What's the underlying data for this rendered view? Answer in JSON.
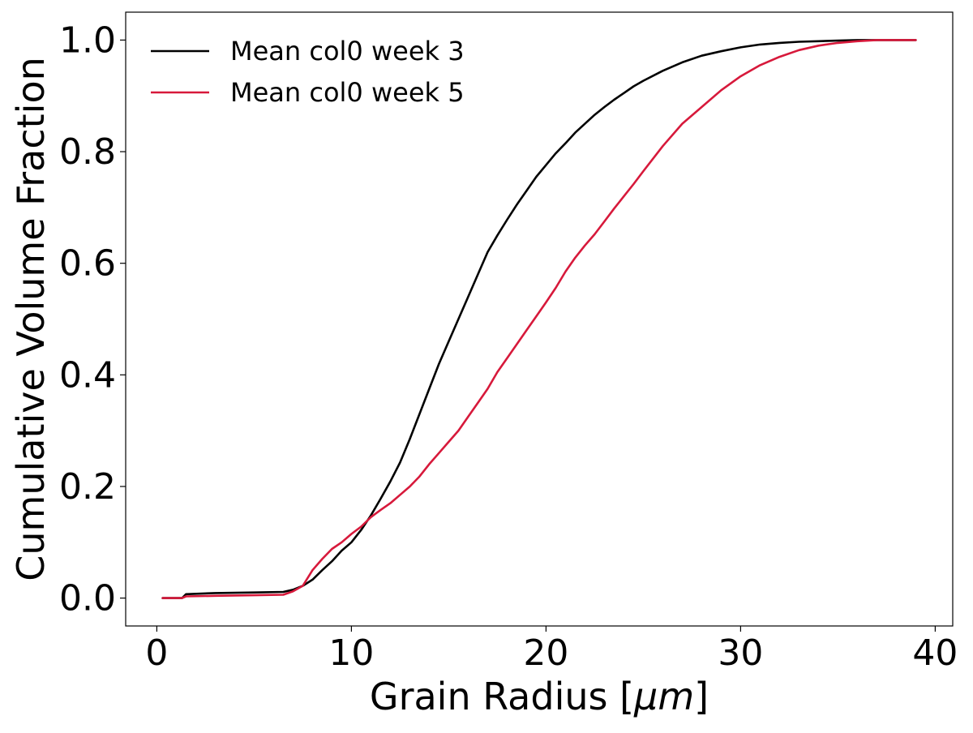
{
  "chart_data": {
    "type": "line",
    "xlabel_text": "Grain Radius [",
    "xlabel_math": "μm",
    "xlabel_close": "]",
    "ylabel": "Cumulative Volume Fraction",
    "xlim": [
      -1.6,
      40.9
    ],
    "ylim": [
      -0.05,
      1.05
    ],
    "xticks": [
      0,
      10,
      20,
      30,
      40
    ],
    "yticks": [
      0.0,
      0.2,
      0.4,
      0.6,
      0.8,
      1.0
    ],
    "xtick_labels": [
      "0",
      "10",
      "20",
      "30",
      "40"
    ],
    "ytick_labels": [
      "0.0",
      "0.2",
      "0.4",
      "0.6",
      "0.8",
      "1.0"
    ],
    "grid": false,
    "legend_position": "upper-left",
    "series": [
      {
        "name": "Mean col0 week 3",
        "color": "#000000",
        "x": [
          0.3,
          1.3,
          1.5,
          3,
          5,
          6.5,
          7,
          7.5,
          8,
          8.5,
          9,
          9.5,
          10,
          10.5,
          11,
          11.5,
          12,
          12.5,
          13,
          13.5,
          14,
          14.5,
          15,
          15.5,
          16,
          16.5,
          17,
          17.5,
          18,
          18.5,
          19,
          19.5,
          20,
          20.5,
          21,
          21.5,
          22,
          22.5,
          23,
          23.5,
          24,
          24.5,
          25,
          26,
          27,
          28,
          29,
          30,
          31,
          32,
          33,
          34,
          35,
          36,
          37,
          38,
          39
        ],
        "y": [
          0.0,
          0.0,
          0.007,
          0.009,
          0.01,
          0.011,
          0.015,
          0.022,
          0.033,
          0.05,
          0.066,
          0.085,
          0.1,
          0.122,
          0.148,
          0.178,
          0.209,
          0.243,
          0.285,
          0.33,
          0.375,
          0.42,
          0.46,
          0.5,
          0.54,
          0.58,
          0.62,
          0.65,
          0.678,
          0.705,
          0.73,
          0.755,
          0.776,
          0.797,
          0.815,
          0.834,
          0.85,
          0.866,
          0.88,
          0.893,
          0.905,
          0.917,
          0.927,
          0.945,
          0.96,
          0.972,
          0.98,
          0.987,
          0.992,
          0.995,
          0.997,
          0.998,
          0.999,
          1.0,
          1.0,
          1.0,
          1.0
        ]
      },
      {
        "name": "Mean col0 week 5",
        "color": "#d7193b",
        "x": [
          0.3,
          1.3,
          1.5,
          3,
          5,
          6.5,
          7,
          7.5,
          8,
          8.5,
          9,
          9.5,
          10,
          10.5,
          11,
          11.5,
          12,
          12.5,
          13,
          13.5,
          14,
          14.5,
          15,
          15.5,
          16,
          16.5,
          17,
          17.5,
          18,
          18.5,
          19,
          19.5,
          20,
          20.5,
          21,
          21.5,
          22,
          22.5,
          23,
          23.5,
          24,
          24.5,
          25,
          26,
          27,
          28,
          29,
          30,
          31,
          32,
          33,
          34,
          35,
          36,
          37,
          38,
          39
        ],
        "y": [
          0.0,
          0.0,
          0.003,
          0.004,
          0.005,
          0.006,
          0.012,
          0.022,
          0.05,
          0.07,
          0.088,
          0.1,
          0.115,
          0.128,
          0.145,
          0.158,
          0.17,
          0.185,
          0.2,
          0.218,
          0.24,
          0.26,
          0.28,
          0.3,
          0.325,
          0.35,
          0.375,
          0.405,
          0.43,
          0.455,
          0.48,
          0.505,
          0.53,
          0.556,
          0.585,
          0.61,
          0.632,
          0.652,
          0.675,
          0.698,
          0.72,
          0.742,
          0.765,
          0.81,
          0.85,
          0.88,
          0.91,
          0.935,
          0.955,
          0.97,
          0.982,
          0.99,
          0.995,
          0.998,
          1.0,
          1.0,
          1.0
        ]
      }
    ]
  }
}
